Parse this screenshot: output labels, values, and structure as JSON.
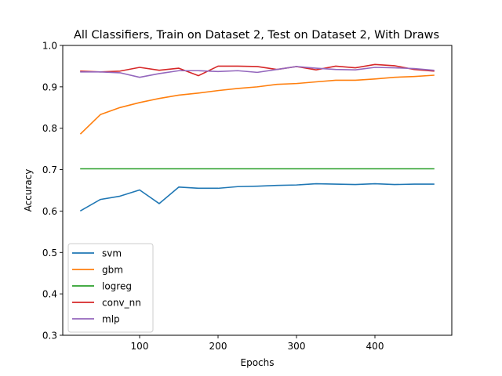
{
  "chart_data": {
    "type": "line",
    "title": "All Classifiers, Train on Dataset 2, Test on Dataset 2, With Draws",
    "xlabel": "Epochs",
    "ylabel": "Accuracy",
    "xlim": [
      2,
      498
    ],
    "ylim": [
      0.3,
      1.0
    ],
    "xticks": [
      100,
      200,
      300,
      400
    ],
    "yticks": [
      0.3,
      0.4,
      0.5,
      0.6,
      0.7,
      0.8,
      0.9,
      1.0
    ],
    "xtick_labels": [
      "100",
      "200",
      "300",
      "400"
    ],
    "ytick_labels": [
      "0.3",
      "0.4",
      "0.5",
      "0.6",
      "0.7",
      "0.8",
      "0.9",
      "1.0"
    ],
    "grid": false,
    "legend_position": "lower-left",
    "x": [
      25,
      50,
      75,
      100,
      125,
      150,
      175,
      200,
      225,
      250,
      275,
      300,
      325,
      350,
      375,
      400,
      425,
      450,
      475
    ],
    "series": [
      {
        "name": "svm",
        "color": "#1f77b4",
        "values": [
          0.601,
          0.628,
          0.636,
          0.651,
          0.618,
          0.658,
          0.655,
          0.655,
          0.659,
          0.66,
          0.662,
          0.663,
          0.666,
          0.665,
          0.664,
          0.666,
          0.664,
          0.665,
          0.665
        ]
      },
      {
        "name": "gbm",
        "color": "#ff7f0e",
        "values": [
          0.787,
          0.833,
          0.85,
          0.862,
          0.872,
          0.88,
          0.885,
          0.891,
          0.896,
          0.9,
          0.906,
          0.908,
          0.912,
          0.916,
          0.916,
          0.919,
          0.923,
          0.925,
          0.928
        ]
      },
      {
        "name": "logreg",
        "color": "#2ca02c",
        "values": [
          0.702,
          0.702,
          0.702,
          0.702,
          0.702,
          0.702,
          0.702,
          0.702,
          0.702,
          0.702,
          0.702,
          0.702,
          0.702,
          0.702,
          0.702,
          0.702,
          0.702,
          0.702,
          0.702
        ]
      },
      {
        "name": "conv_nn",
        "color": "#d62728",
        "values": [
          0.938,
          0.936,
          0.938,
          0.947,
          0.94,
          0.945,
          0.927,
          0.95,
          0.95,
          0.949,
          0.942,
          0.949,
          0.941,
          0.95,
          0.946,
          0.954,
          0.951,
          0.942,
          0.938
        ]
      },
      {
        "name": "mlp",
        "color": "#9467bd",
        "values": [
          0.936,
          0.936,
          0.934,
          0.923,
          0.932,
          0.939,
          0.939,
          0.937,
          0.939,
          0.935,
          0.942,
          0.949,
          0.945,
          0.942,
          0.941,
          0.947,
          0.946,
          0.944,
          0.94
        ]
      }
    ]
  }
}
